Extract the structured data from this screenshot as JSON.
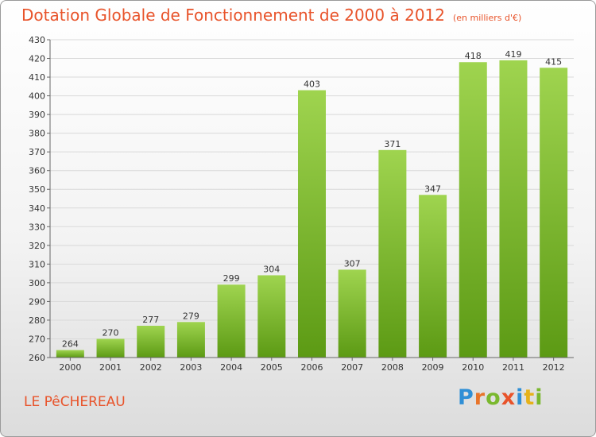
{
  "title": "Dotation Globale de Fonctionnement de 2000 à 2012",
  "unit": "(en milliers d'€)",
  "commune": "LE PêCHEREAU",
  "logo": {
    "letters": [
      {
        "ch": "P",
        "color": "#2f8fd6"
      },
      {
        "ch": "r",
        "color": "#e8742a"
      },
      {
        "ch": "o",
        "color": "#7ab82e"
      },
      {
        "ch": "x",
        "color": "#e8532a"
      },
      {
        "ch": "i",
        "color": "#2f8fd6"
      },
      {
        "ch": "t",
        "color": "#e6b21a"
      },
      {
        "ch": "i",
        "color": "#7ab82e"
      }
    ]
  },
  "colors": {
    "title": "#e8532a",
    "bar_light": "#9fd44f",
    "bar_dark": "#5c9a14",
    "grid": "#d9d9d9",
    "axis": "#666666"
  },
  "chart_data": {
    "type": "bar",
    "title": "Dotation Globale de Fonctionnement de 2000 à 2012",
    "xlabel": "",
    "ylabel": "",
    "categories": [
      "2000",
      "2001",
      "2002",
      "2003",
      "2004",
      "2005",
      "2006",
      "2007",
      "2008",
      "2009",
      "2010",
      "2011",
      "2012"
    ],
    "values": [
      264,
      270,
      277,
      279,
      299,
      304,
      403,
      307,
      371,
      347,
      418,
      419,
      415
    ],
    "ylim": [
      260,
      430
    ],
    "ytick_step": 10,
    "grid": true,
    "legend": "none"
  }
}
